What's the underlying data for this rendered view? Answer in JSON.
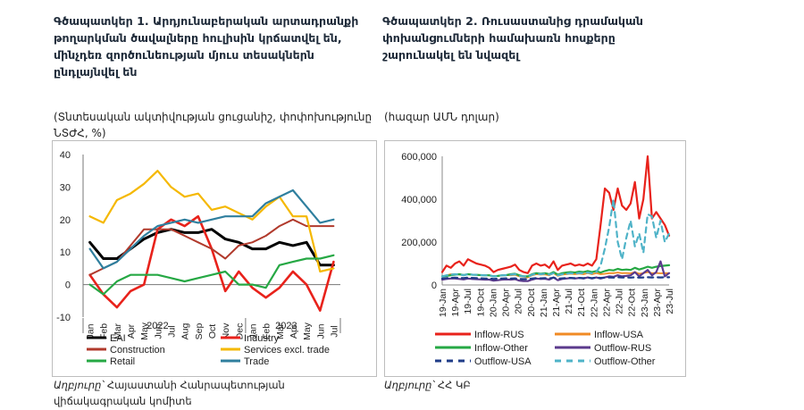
{
  "left": {
    "title": "Գծապատկեր 1. Արդյունաբերական արտադրանքի թողարկման ծավալները հուլիսին կրճատվել են, մինչդեռ զործունեության մյուս տեսակներն ընդլայնվել են",
    "subtitle": "(Տնտեսական ակտիվության ցուցանիշ, փոփոխությունը ՆՏԺՀ, %)",
    "source_label": "Աղբյուրը՝",
    "source_text": "Հայաստանի Հանրապետության վիճակագրական կոմիտե"
  },
  "right": {
    "title": "Գծապատկեր 2. Ռուսաստանից դրամական փոխանցումների համախառն հոսքերը շարունակել են նվազել",
    "subtitle": "(հազար ԱՄՆ դոլար)",
    "source_label": "Աղբյուրը՝",
    "source_text": "ՀՀ ԿԲ"
  },
  "chart_data": [
    {
      "type": "line",
      "ylim": [
        -10,
        40
      ],
      "yticks": [
        -10,
        0,
        10,
        20,
        30,
        40
      ],
      "categories": [
        "Jan",
        "Feb",
        "Mar",
        "Apr",
        "May",
        "Jun",
        "Jul",
        "Aug",
        "Sep",
        "Oct",
        "Nov",
        "Dec",
        "Jan",
        "Feb",
        "Mar",
        "Apr",
        "May",
        "Jun",
        "Jul"
      ],
      "year_labels": [
        {
          "label": "2022",
          "at": 5.5
        },
        {
          "label": "2023",
          "at": 15
        }
      ],
      "series": [
        {
          "name": "EAI",
          "color": "#000000",
          "dash": "",
          "width": 3,
          "values": [
            13,
            8,
            8,
            11,
            14,
            16,
            17,
            16,
            16,
            17,
            14,
            13,
            11,
            11,
            13,
            12,
            13,
            6,
            6
          ]
        },
        {
          "name": "Industry",
          "color": "#e8221b",
          "dash": "",
          "width": 2.6,
          "values": [
            3,
            -3,
            -7,
            -2,
            0,
            17,
            20,
            18,
            21,
            11,
            -2,
            4,
            -1,
            -4,
            -1,
            4,
            0,
            -8,
            7
          ]
        },
        {
          "name": "Construction",
          "color": "#b13a2c",
          "dash": "",
          "width": 2,
          "values": [
            3,
            5,
            7,
            12,
            17,
            17,
            17,
            15,
            13,
            11,
            8,
            12,
            13,
            15,
            18,
            20,
            18,
            18,
            18
          ]
        },
        {
          "name": "Services excl. trade",
          "color": "#f5b800",
          "dash": "",
          "width": 2.2,
          "values": [
            21,
            19,
            26,
            28,
            31,
            35,
            30,
            27,
            28,
            23,
            24,
            22,
            20,
            24,
            27,
            21,
            21,
            4,
            5
          ]
        },
        {
          "name": "Retail",
          "color": "#26a844",
          "dash": "",
          "width": 2.2,
          "values": [
            0,
            -3,
            1,
            3,
            3,
            3,
            2,
            1,
            2,
            3,
            4,
            0,
            0,
            -1,
            6,
            7,
            8,
            8,
            9
          ]
        },
        {
          "name": "Trade",
          "color": "#2f7f9e",
          "dash": "",
          "width": 2.2,
          "values": [
            11,
            5,
            7,
            11,
            15,
            18,
            19,
            20,
            19,
            20,
            21,
            21,
            21,
            25,
            27,
            29,
            24,
            19,
            20
          ]
        }
      ]
    },
    {
      "type": "line",
      "ylim": [
        0,
        600000
      ],
      "yticks": [
        0,
        200000,
        400000,
        600000
      ],
      "ytick_labels": [
        "0",
        "200,000",
        "400,000",
        "600,000"
      ],
      "xtick_labels": [
        "19-Jan",
        "19-Apr",
        "19-Jul",
        "19-Oct",
        "20-Jan",
        "20-Apr",
        "20-Jul",
        "20-Oct",
        "21-Jan",
        "21-Apr",
        "21-Jul",
        "21-Oct",
        "22-Jan",
        "22-Apr",
        "22-Jul",
        "22-Oct",
        "23-Jan",
        "23-Apr",
        "23-Jul"
      ],
      "series": [
        {
          "name": "Inflow-RUS",
          "color": "#e8221b",
          "dash": "",
          "width": 2.2,
          "values": [
            60000,
            90000,
            80000,
            100000,
            110000,
            90000,
            120000,
            110000,
            100000,
            95000,
            90000,
            80000,
            60000,
            70000,
            75000,
            80000,
            85000,
            95000,
            70000,
            60000,
            55000,
            90000,
            100000,
            90000,
            95000,
            80000,
            110000,
            70000,
            90000,
            95000,
            100000,
            90000,
            95000,
            90000,
            100000,
            90000,
            120000,
            280000,
            450000,
            430000,
            350000,
            450000,
            370000,
            350000,
            380000,
            480000,
            310000,
            400000,
            600000,
            310000,
            340000,
            310000,
            280000,
            230000
          ]
        },
        {
          "name": "Inflow-USA",
          "color": "#f08a24",
          "dash": "",
          "width": 1.8,
          "values": [
            40000,
            45000,
            50000,
            50000,
            48000,
            46000,
            50000,
            48000,
            47000,
            46000,
            45000,
            45000,
            40000,
            42000,
            45000,
            46000,
            45000,
            47000,
            40000,
            38000,
            35000,
            45000,
            50000,
            48000,
            49000,
            45000,
            55000,
            42000,
            48000,
            50000,
            52000,
            50000,
            53000,
            50000,
            55000,
            50000,
            55000,
            50000,
            52000,
            55000,
            55000,
            58000,
            55000,
            56000,
            54000,
            60000,
            52000,
            55000,
            60000,
            55000,
            56000,
            54000,
            55000,
            55000
          ]
        },
        {
          "name": "Inflow-Other",
          "color": "#26a844",
          "dash": "",
          "width": 2.2,
          "values": [
            40000,
            42000,
            45000,
            48000,
            50000,
            46000,
            50000,
            48000,
            47000,
            46000,
            45000,
            45000,
            40000,
            42000,
            45000,
            46000,
            50000,
            52000,
            45000,
            40000,
            40000,
            50000,
            55000,
            52000,
            55000,
            50000,
            60000,
            48000,
            55000,
            58000,
            60000,
            58000,
            62000,
            60000,
            65000,
            60000,
            65000,
            58000,
            65000,
            70000,
            68000,
            75000,
            70000,
            72000,
            70000,
            80000,
            72000,
            78000,
            85000,
            80000,
            85000,
            88000,
            90000,
            92000
          ]
        },
        {
          "name": "Outflow-RUS",
          "color": "#5b3a8c",
          "dash": "",
          "width": 2.2,
          "values": [
            25000,
            28000,
            30000,
            30000,
            28000,
            26000,
            30000,
            28000,
            27000,
            26000,
            25000,
            25000,
            20000,
            22000,
            25000,
            26000,
            25000,
            27000,
            20000,
            18000,
            18000,
            25000,
            30000,
            28000,
            29000,
            25000,
            35000,
            22000,
            28000,
            30000,
            32000,
            30000,
            33000,
            30000,
            35000,
            30000,
            35000,
            30000,
            35000,
            40000,
            38000,
            45000,
            40000,
            42000,
            45000,
            60000,
            40000,
            55000,
            70000,
            45000,
            60000,
            110000,
            40000,
            55000
          ]
        },
        {
          "name": "Outflow-USA",
          "color": "#1f3c88",
          "dash": "6,5",
          "width": 2.2,
          "values": [
            30000,
            32000,
            33000,
            34000,
            33000,
            32000,
            34000,
            33000,
            32000,
            31000,
            30000,
            30000,
            28000,
            29000,
            30000,
            31000,
            30000,
            31000,
            28000,
            27000,
            27000,
            30000,
            32000,
            31000,
            32000,
            30000,
            34000,
            29000,
            31000,
            32000,
            33000,
            32000,
            33000,
            32000,
            34000,
            32000,
            34000,
            33000,
            34000,
            35000,
            34000,
            36000,
            35000,
            35000,
            34000,
            36000,
            34000,
            35000,
            36000,
            35000,
            36000,
            35000,
            36000,
            36000
          ]
        },
        {
          "name": "Outflow-Other",
          "color": "#4fb3c8",
          "dash": "6,5",
          "width": 2.2,
          "values": [
            40000,
            45000,
            48000,
            50000,
            48000,
            46000,
            50000,
            48000,
            47000,
            46000,
            45000,
            45000,
            40000,
            42000,
            45000,
            46000,
            48000,
            50000,
            42000,
            40000,
            38000,
            48000,
            52000,
            50000,
            52000,
            48000,
            55000,
            45000,
            50000,
            52000,
            55000,
            52000,
            56000,
            54000,
            58000,
            54000,
            60000,
            90000,
            170000,
            270000,
            400000,
            200000,
            120000,
            220000,
            300000,
            180000,
            240000,
            150000,
            330000,
            320000,
            220000,
            300000,
            200000,
            240000
          ]
        }
      ]
    }
  ]
}
